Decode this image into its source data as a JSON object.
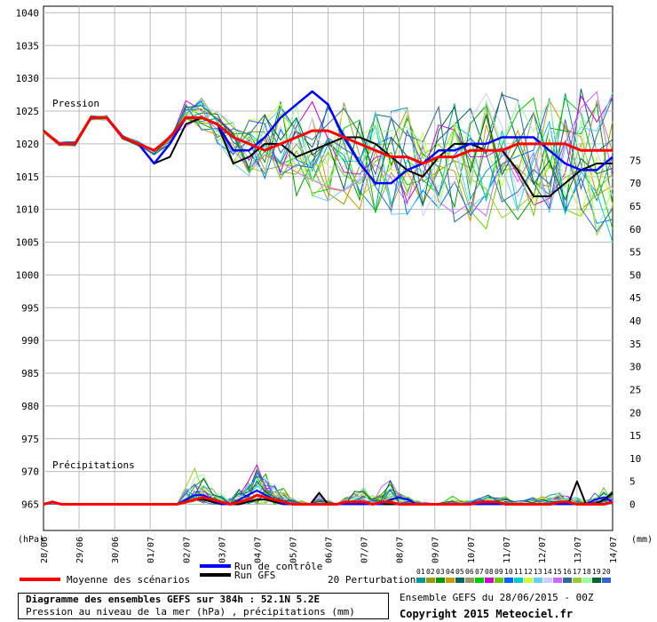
{
  "chart_data": {
    "type": "line",
    "x": [
      "28/06",
      "29/06",
      "30/06",
      "01/07",
      "02/07",
      "03/07",
      "04/07",
      "05/07",
      "06/07",
      "07/07",
      "08/07",
      "09/07",
      "10/07",
      "11/07",
      "12/07",
      "13/07",
      "14/07"
    ],
    "y_left": {
      "unit": "(hPa)",
      "ticks": [
        1040,
        1035,
        1030,
        1025,
        1020,
        1015,
        1010,
        1005,
        1000,
        995,
        990,
        985,
        980,
        975,
        970,
        965
      ],
      "ylim": [
        961,
        1041
      ]
    },
    "y_right": {
      "unit": "(mm)",
      "ticks": [
        75,
        70,
        65,
        60,
        55,
        50,
        45,
        40,
        35,
        30,
        25,
        20,
        15,
        10,
        5,
        0
      ]
    },
    "pressure_label": "Pression",
    "precip_label": "Précipitations",
    "pressure": {
      "mean": [
        1022,
        1020,
        1020,
        1024,
        1024,
        1021,
        1020,
        1019,
        1021,
        1024,
        1024,
        1023,
        1021,
        1020,
        1019,
        1020,
        1021,
        1022,
        1022,
        1021,
        1020,
        1019,
        1018,
        1018,
        1017,
        1018,
        1018,
        1019,
        1019,
        1019,
        1020,
        1020,
        1020,
        1020,
        1019,
        1019,
        1019
      ],
      "control": [
        1022,
        1020,
        1020,
        1024,
        1024,
        1021,
        1020,
        1017,
        1020,
        1024,
        1024,
        1023,
        1019,
        1019,
        1021,
        1024,
        1026,
        1028,
        1026,
        1021,
        1017,
        1014,
        1014,
        1016,
        1017,
        1019,
        1019,
        1020,
        1020,
        1021,
        1021,
        1021,
        1019,
        1017,
        1016,
        1016,
        1018
      ],
      "gfs": [
        1022,
        1020,
        1020,
        1024,
        1024,
        1021,
        1020,
        1017,
        1018,
        1023,
        1024,
        1023,
        1017,
        1018,
        1020,
        1020,
        1018,
        1019,
        1020,
        1021,
        1021,
        1020,
        1018,
        1016,
        1015,
        1018,
        1020,
        1020,
        1019,
        1019,
        1016,
        1012,
        1012,
        1014,
        1016,
        1017,
        1017
      ],
      "perturbation_ranges": [
        [
          1021,
          1022
        ],
        [
          1019,
          1021
        ],
        [
          1019,
          1021
        ],
        [
          1023,
          1025
        ],
        [
          1023,
          1025
        ],
        [
          1020,
          1022
        ],
        [
          1019,
          1021
        ],
        [
          1017,
          1019
        ],
        [
          1018,
          1022
        ],
        [
          1022,
          1027
        ],
        [
          1022,
          1027
        ],
        [
          1020,
          1025
        ],
        [
          1016,
          1024
        ],
        [
          1015,
          1024
        ],
        [
          1014,
          1026
        ],
        [
          1014,
          1027
        ],
        [
          1012,
          1027
        ],
        [
          1012,
          1027
        ],
        [
          1011,
          1027
        ],
        [
          1010,
          1027
        ],
        [
          1010,
          1026
        ],
        [
          1009,
          1025
        ],
        [
          1009,
          1026
        ],
        [
          1009,
          1026
        ],
        [
          1009,
          1025
        ],
        [
          1008,
          1026
        ],
        [
          1008,
          1027
        ],
        [
          1008,
          1027
        ],
        [
          1007,
          1028
        ],
        [
          1006,
          1028
        ],
        [
          1008,
          1027
        ],
        [
          1009,
          1028
        ],
        [
          1009,
          1028
        ],
        [
          1008,
          1028
        ],
        [
          1007,
          1029
        ],
        [
          1006,
          1029
        ],
        [
          1005,
          1029
        ]
      ]
    },
    "precipitation_mm": {
      "mean": [
        0,
        0.5,
        0,
        0,
        0,
        0,
        0,
        0,
        0,
        0,
        0,
        0,
        0,
        0,
        0,
        0,
        0.5,
        1,
        1.5,
        1,
        0.5,
        0,
        0.5,
        1,
        2,
        1.5,
        1,
        0.5,
        0,
        0,
        0,
        0,
        0,
        0,
        0.5,
        0.5,
        0.5,
        0,
        0.5,
        0.5,
        0,
        0,
        0,
        0,
        0,
        0,
        0,
        0,
        0,
        0.5,
        0.5,
        0.5,
        0,
        0,
        0,
        0,
        0,
        0,
        0.5,
        0.5,
        0,
        0,
        0,
        0,
        0.5
      ],
      "control": [
        0,
        0.5,
        0,
        0,
        0,
        0,
        0,
        0,
        0,
        0,
        0,
        0,
        0,
        0,
        0,
        0,
        1,
        2,
        2,
        1,
        0,
        0,
        1,
        2,
        3,
        2,
        1,
        0,
        0,
        0,
        0,
        0,
        0,
        0,
        0,
        0,
        0,
        0,
        0,
        1,
        1.5,
        1,
        0,
        0,
        0,
        0,
        0,
        0,
        0,
        0,
        0,
        0,
        0,
        0,
        0,
        0,
        0,
        0,
        0,
        0,
        0,
        0,
        1,
        1.5,
        0.5
      ],
      "gfs": [
        0,
        0.5,
        0,
        0,
        0,
        0,
        0,
        0,
        0,
        0,
        0,
        0,
        0,
        0,
        0,
        0,
        0.5,
        1,
        1,
        0.5,
        0,
        0,
        0,
        0.5,
        1,
        1,
        0.5,
        0,
        0,
        0,
        0,
        2.5,
        0,
        0,
        0,
        0,
        0,
        0,
        0,
        0,
        0,
        0,
        0,
        0,
        0,
        0,
        0,
        0,
        0,
        0,
        0,
        0,
        0,
        0,
        0,
        0,
        0,
        0,
        0,
        0,
        5,
        0,
        0,
        1,
        2.5
      ],
      "max": [
        0,
        1,
        0,
        0,
        0,
        0,
        0,
        0,
        0,
        0,
        0,
        0,
        0,
        0,
        0,
        0,
        5,
        10,
        8,
        6,
        3,
        2,
        4,
        7,
        13,
        9,
        6,
        4,
        2,
        1,
        0,
        3,
        1,
        0,
        2,
        3,
        4,
        2,
        4,
        6,
        3,
        2,
        1,
        1,
        0,
        1,
        2,
        1,
        1,
        2,
        3,
        2,
        2,
        1,
        1,
        2,
        2,
        3,
        5,
        2,
        2,
        1,
        3,
        4,
        5
      ]
    },
    "legend": {
      "control": "Run de contrôle",
      "gfs": "Run GFS",
      "mean": "Moyenne des scénarios",
      "perturbations": "20 Perturbations",
      "perturbation_ids": [
        "01",
        "02",
        "03",
        "04",
        "05",
        "06",
        "07",
        "08",
        "09",
        "10",
        "11",
        "12",
        "13",
        "14",
        "15",
        "16",
        "17",
        "18",
        "19",
        "20"
      ]
    },
    "colors": {
      "mean": "#ff0000",
      "control": "#0000ff",
      "gfs": "#000000",
      "perturbations": [
        "#009999",
        "#999900",
        "#009900",
        "#cc9900",
        "#006666",
        "#999966",
        "#00cc00",
        "#cc00cc",
        "#66cc00",
        "#0066ff",
        "#00cccc",
        "#ccff33",
        "#66ccff",
        "#ccccff",
        "#cc66ff",
        "#336699",
        "#99cc33",
        "#99ff99",
        "#006633",
        "#3366cc"
      ]
    }
  },
  "info": {
    "title": "Diagramme des ensembles GEFS sur 384h : 52.1N 5.2E",
    "subtitle": "Pression au niveau de la mer (hPa) , précipitations (mm)",
    "ensemble_run": "Ensemble GEFS du 28/06/2015 - 00Z",
    "copyright": "Copyright 2015 Meteociel.fr"
  }
}
